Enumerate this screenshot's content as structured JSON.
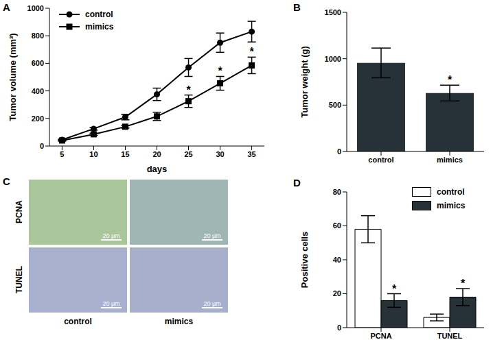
{
  "chart_data": [
    {
      "panel": "A",
      "type": "line",
      "x_label": "days",
      "y_label": "Tumor volume (mm³)",
      "x": [
        5,
        10,
        15,
        20,
        25,
        30,
        35
      ],
      "xlim": [
        3,
        37
      ],
      "xticks": [
        5,
        10,
        15,
        20,
        25,
        30,
        35
      ],
      "ylim": [
        0,
        1000
      ],
      "yticks": [
        0,
        200,
        400,
        600,
        800,
        1000
      ],
      "legend": "upper left",
      "annotation": "*",
      "series": [
        {
          "name": "control",
          "color": "#000000",
          "marker": "circle",
          "values": [
            45,
            125,
            210,
            375,
            570,
            750,
            830
          ],
          "errors": [
            5,
            10,
            20,
            45,
            65,
            70,
            75
          ],
          "significant": [
            false,
            false,
            false,
            false,
            false,
            false,
            false
          ]
        },
        {
          "name": "mimics",
          "color": "#000000",
          "marker": "square",
          "values": [
            40,
            85,
            140,
            215,
            325,
            455,
            585
          ],
          "errors": [
            5,
            8,
            10,
            30,
            45,
            50,
            60
          ],
          "significant": [
            false,
            false,
            false,
            false,
            true,
            true,
            true
          ]
        }
      ]
    },
    {
      "panel": "B",
      "type": "bar",
      "y_label": "Tumor weight (g)",
      "categories": [
        "control",
        "mimics"
      ],
      "values": [
        955,
        630
      ],
      "errors": [
        160,
        85
      ],
      "significant": [
        false,
        true
      ],
      "annotation": "*",
      "color": "#263238",
      "ylim": [
        0,
        1500
      ],
      "yticks": [
        0,
        500,
        1000,
        1500
      ]
    },
    {
      "panel": "D",
      "type": "bar",
      "y_label": "Positive cells",
      "categories": [
        "PCNA",
        "TUNEL"
      ],
      "legend": "upper right",
      "annotation": "*",
      "ylim": [
        0,
        80
      ],
      "yticks": [
        0,
        20,
        40,
        60,
        80
      ],
      "series": [
        {
          "name": "control",
          "color": "#ffffff",
          "values": [
            58,
            6
          ],
          "errors": [
            8,
            2
          ],
          "significant": [
            false,
            false
          ]
        },
        {
          "name": "mimics",
          "color": "#263238",
          "values": [
            16,
            18
          ],
          "errors": [
            4,
            5
          ],
          "significant": [
            true,
            true
          ]
        }
      ]
    }
  ],
  "images": {
    "panel": "C",
    "type": "image_grid",
    "rows": [
      "PCNA",
      "TUNEL"
    ],
    "columns": [
      "control",
      "mimics"
    ],
    "scale_bar": "20 μm"
  }
}
